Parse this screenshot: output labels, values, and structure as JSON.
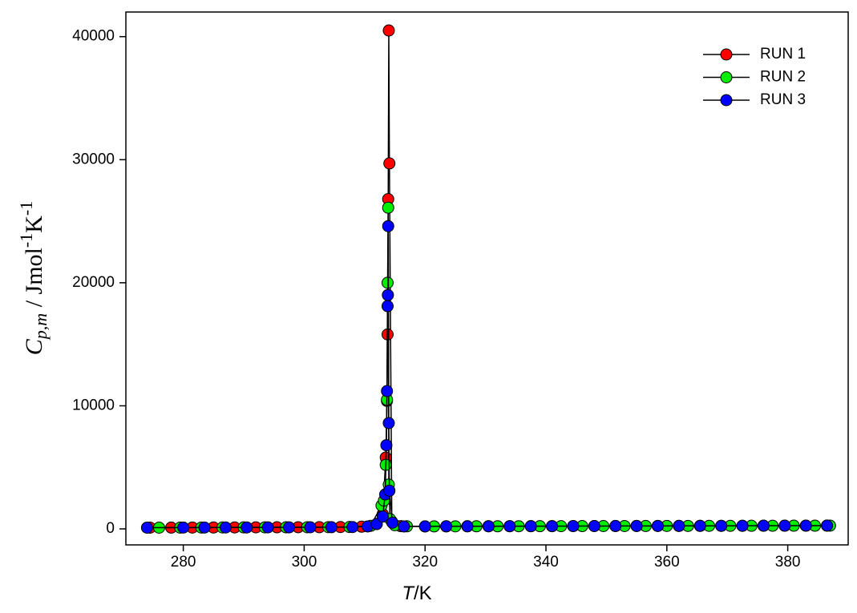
{
  "chart_data": {
    "type": "line",
    "xlabel": {
      "symbol": "T",
      "unit": "/K"
    },
    "ylabel": {
      "symbol": "C",
      "subscript": "p,m",
      "unit": " / Jmol",
      "superscript1": "-1",
      "unit2": "K",
      "superscript2": "-1"
    },
    "xlim": [
      270.5,
      390
    ],
    "ylim": [
      -1300,
      42000
    ],
    "xticks": [
      280,
      300,
      320,
      340,
      360,
      380
    ],
    "yticks": [
      0,
      10000,
      20000,
      30000,
      40000
    ],
    "grid": false,
    "legend": "upper right",
    "series": [
      {
        "name": "RUN 1",
        "color": "#ff0000",
        "x": [
          274.5,
          278,
          281.5,
          285,
          288.5,
          292,
          295.5,
          299,
          302.5,
          306,
          309.5,
          312,
          313,
          313.5,
          313.7,
          313.8,
          313.9,
          314,
          314.1,
          314.5,
          316,
          320,
          323.5,
          327,
          330.5,
          334,
          337.5,
          341,
          344.5,
          348,
          351.5,
          355,
          358.5,
          362,
          365.5,
          369,
          372.5,
          376,
          379.5,
          383,
          386.5
        ],
        "values": [
          100,
          105,
          110,
          115,
          120,
          125,
          130,
          135,
          140,
          150,
          180,
          400,
          1200,
          5800,
          10400,
          15800,
          26800,
          40500,
          29700,
          600,
          220,
          200,
          205,
          210,
          210,
          215,
          220,
          220,
          225,
          230,
          230,
          235,
          240,
          240,
          245,
          250,
          250,
          255,
          260,
          260,
          265
        ]
      },
      {
        "name": "RUN 2",
        "color": "#00ee00",
        "x": [
          276,
          279.5,
          283,
          286.5,
          290,
          293.5,
          297,
          300.5,
          304,
          307.5,
          311,
          312.8,
          313.2,
          313.5,
          313.7,
          313.8,
          313.9,
          314,
          314.2,
          315,
          317,
          321.5,
          325,
          328.5,
          332,
          335.5,
          339,
          342.5,
          346,
          349.5,
          353,
          356.5,
          360,
          363.5,
          367,
          370.5,
          374,
          377.5,
          381,
          384.5,
          387
        ],
        "values": [
          102,
          106,
          111,
          116,
          121,
          126,
          131,
          136,
          142,
          155,
          250,
          1900,
          2300,
          5200,
          10500,
          20000,
          26100,
          3600,
          800,
          300,
          210,
          202,
          207,
          210,
          212,
          217,
          220,
          222,
          227,
          230,
          232,
          237,
          240,
          242,
          247,
          250,
          252,
          257,
          260,
          262,
          266
        ]
      },
      {
        "name": "RUN 3",
        "color": "#0000ff",
        "x": [
          274,
          280,
          283.5,
          287,
          290.5,
          294,
          297.5,
          301,
          304.5,
          308,
          310.5,
          312,
          313,
          313.4,
          313.6,
          313.7,
          313.8,
          313.85,
          313.9,
          314,
          314.1,
          314.6,
          316.5,
          320,
          323.5,
          327,
          330.5,
          334,
          337.5,
          341,
          344.5,
          348,
          351.5,
          355,
          358.5,
          362,
          365.5,
          369,
          372.5,
          376,
          379.5,
          383,
          386.5
        ],
        "values": [
          100,
          108,
          112,
          116,
          120,
          124,
          128,
          132,
          138,
          150,
          200,
          400,
          1000,
          2800,
          6800,
          11200,
          18100,
          19000,
          24600,
          8600,
          3100,
          500,
          200,
          205,
          210,
          210,
          215,
          220,
          220,
          225,
          230,
          230,
          235,
          240,
          240,
          245,
          250,
          250,
          255,
          260,
          260,
          265,
          268
        ]
      }
    ]
  }
}
